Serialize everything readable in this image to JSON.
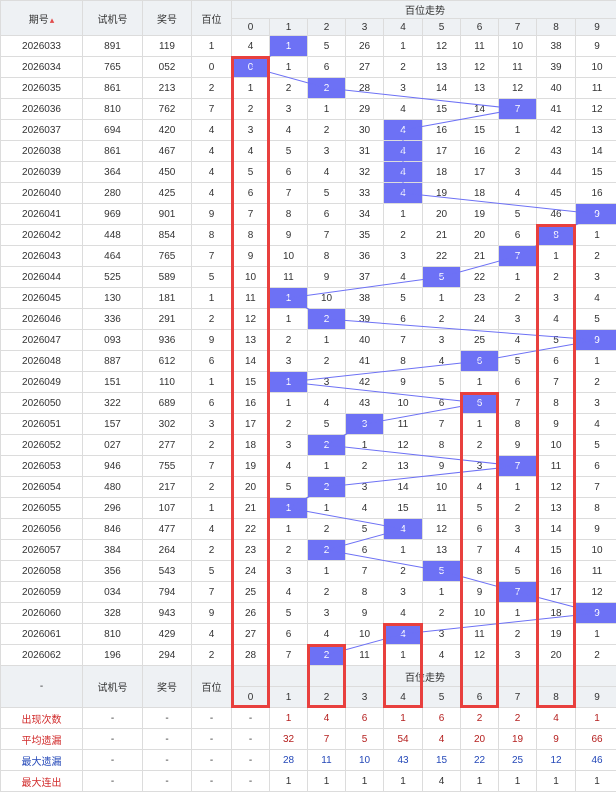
{
  "header": {
    "period_label": "期号",
    "test_label": "试机号",
    "prize_label": "奖号",
    "hundreds_label": "百位",
    "trend_label": "百位走势",
    "digits": [
      "0",
      "1",
      "2",
      "3",
      "4",
      "5",
      "6",
      "7",
      "8",
      "9"
    ],
    "footer_dash": "-"
  },
  "chart_data": {
    "type": "table",
    "rows": [
      {
        "period": "2026033",
        "test": "891",
        "prize": "119",
        "hundreds": "1",
        "cells": [
          "4",
          "1",
          "5",
          "26",
          "1",
          "12",
          "11",
          "10",
          "38",
          "9"
        ]
      },
      {
        "period": "2026034",
        "test": "765",
        "prize": "052",
        "hundreds": "0",
        "cells": [
          "0",
          "1",
          "6",
          "27",
          "2",
          "13",
          "12",
          "11",
          "39",
          "10"
        ]
      },
      {
        "period": "2026035",
        "test": "861",
        "prize": "213",
        "hundreds": "2",
        "cells": [
          "1",
          "2",
          "2",
          "28",
          "3",
          "14",
          "13",
          "12",
          "40",
          "11"
        ]
      },
      {
        "period": "2026036",
        "test": "810",
        "prize": "762",
        "hundreds": "7",
        "cells": [
          "2",
          "3",
          "1",
          "29",
          "4",
          "15",
          "14",
          "7",
          "41",
          "12"
        ]
      },
      {
        "period": "2026037",
        "test": "694",
        "prize": "420",
        "hundreds": "4",
        "cells": [
          "3",
          "4",
          "2",
          "30",
          "4",
          "16",
          "15",
          "1",
          "42",
          "13"
        ]
      },
      {
        "period": "2026038",
        "test": "861",
        "prize": "467",
        "hundreds": "4",
        "cells": [
          "4",
          "5",
          "3",
          "31",
          "4",
          "17",
          "16",
          "2",
          "43",
          "14"
        ]
      },
      {
        "period": "2026039",
        "test": "364",
        "prize": "450",
        "hundreds": "4",
        "cells": [
          "5",
          "6",
          "4",
          "32",
          "4",
          "18",
          "17",
          "3",
          "44",
          "15"
        ]
      },
      {
        "period": "2026040",
        "test": "280",
        "prize": "425",
        "hundreds": "4",
        "cells": [
          "6",
          "7",
          "5",
          "33",
          "4",
          "19",
          "18",
          "4",
          "45",
          "16"
        ]
      },
      {
        "period": "2026041",
        "test": "969",
        "prize": "901",
        "hundreds": "9",
        "cells": [
          "7",
          "8",
          "6",
          "34",
          "1",
          "20",
          "19",
          "5",
          "46",
          "9"
        ]
      },
      {
        "period": "2026042",
        "test": "448",
        "prize": "854",
        "hundreds": "8",
        "cells": [
          "8",
          "9",
          "7",
          "35",
          "2",
          "21",
          "20",
          "6",
          "8",
          "1"
        ]
      },
      {
        "period": "2026043",
        "test": "464",
        "prize": "765",
        "hundreds": "7",
        "cells": [
          "9",
          "10",
          "8",
          "36",
          "3",
          "22",
          "21",
          "7",
          "1",
          "2"
        ]
      },
      {
        "period": "2026044",
        "test": "525",
        "prize": "589",
        "hundreds": "5",
        "cells": [
          "10",
          "11",
          "9",
          "37",
          "4",
          "5",
          "22",
          "1",
          "2",
          "3"
        ]
      },
      {
        "period": "2026045",
        "test": "130",
        "prize": "181",
        "hundreds": "1",
        "cells": [
          "11",
          "1",
          "10",
          "38",
          "5",
          "1",
          "23",
          "2",
          "3",
          "4"
        ]
      },
      {
        "period": "2026046",
        "test": "336",
        "prize": "291",
        "hundreds": "2",
        "cells": [
          "12",
          "1",
          "2",
          "39",
          "6",
          "2",
          "24",
          "3",
          "4",
          "5"
        ]
      },
      {
        "period": "2026047",
        "test": "093",
        "prize": "936",
        "hundreds": "9",
        "cells": [
          "13",
          "2",
          "1",
          "40",
          "7",
          "3",
          "25",
          "4",
          "5",
          "9"
        ]
      },
      {
        "period": "2026048",
        "test": "887",
        "prize": "612",
        "hundreds": "6",
        "cells": [
          "14",
          "3",
          "2",
          "41",
          "8",
          "4",
          "6",
          "5",
          "6",
          "1"
        ]
      },
      {
        "period": "2026049",
        "test": "151",
        "prize": "110",
        "hundreds": "1",
        "cells": [
          "15",
          "1",
          "3",
          "42",
          "9",
          "5",
          "1",
          "6",
          "7",
          "2"
        ]
      },
      {
        "period": "2026050",
        "test": "322",
        "prize": "689",
        "hundreds": "6",
        "cells": [
          "16",
          "1",
          "4",
          "43",
          "10",
          "6",
          "6",
          "7",
          "8",
          "3"
        ]
      },
      {
        "period": "2026051",
        "test": "157",
        "prize": "302",
        "hundreds": "3",
        "cells": [
          "17",
          "2",
          "5",
          "3",
          "11",
          "7",
          "1",
          "8",
          "9",
          "4"
        ]
      },
      {
        "period": "2026052",
        "test": "027",
        "prize": "277",
        "hundreds": "2",
        "cells": [
          "18",
          "3",
          "2",
          "1",
          "12",
          "8",
          "2",
          "9",
          "10",
          "5"
        ]
      },
      {
        "period": "2026053",
        "test": "946",
        "prize": "755",
        "hundreds": "7",
        "cells": [
          "19",
          "4",
          "1",
          "2",
          "13",
          "9",
          "3",
          "7",
          "11",
          "6"
        ]
      },
      {
        "period": "2026054",
        "test": "480",
        "prize": "217",
        "hundreds": "2",
        "cells": [
          "20",
          "5",
          "2",
          "3",
          "14",
          "10",
          "4",
          "1",
          "12",
          "7"
        ]
      },
      {
        "period": "2026055",
        "test": "296",
        "prize": "107",
        "hundreds": "1",
        "cells": [
          "21",
          "1",
          "1",
          "4",
          "15",
          "11",
          "5",
          "2",
          "13",
          "8"
        ]
      },
      {
        "period": "2026056",
        "test": "846",
        "prize": "477",
        "hundreds": "4",
        "cells": [
          "22",
          "1",
          "2",
          "5",
          "4",
          "12",
          "6",
          "3",
          "14",
          "9"
        ]
      },
      {
        "period": "2026057",
        "test": "384",
        "prize": "264",
        "hundreds": "2",
        "cells": [
          "23",
          "2",
          "2",
          "6",
          "1",
          "13",
          "7",
          "4",
          "15",
          "10"
        ]
      },
      {
        "period": "2026058",
        "test": "356",
        "prize": "543",
        "hundreds": "5",
        "cells": [
          "24",
          "3",
          "1",
          "7",
          "2",
          "5",
          "8",
          "5",
          "16",
          "11"
        ]
      },
      {
        "period": "2026059",
        "test": "034",
        "prize": "794",
        "hundreds": "7",
        "cells": [
          "25",
          "4",
          "2",
          "8",
          "3",
          "1",
          "9",
          "7",
          "17",
          "12"
        ]
      },
      {
        "period": "2026060",
        "test": "328",
        "prize": "943",
        "hundreds": "9",
        "cells": [
          "26",
          "5",
          "3",
          "9",
          "4",
          "2",
          "10",
          "1",
          "18",
          "9"
        ]
      },
      {
        "period": "2026061",
        "test": "810",
        "prize": "429",
        "hounds": "4",
        "hundreds": "4",
        "cells": [
          "27",
          "6",
          "4",
          "10",
          "4",
          "3",
          "11",
          "2",
          "19",
          "1"
        ]
      },
      {
        "period": "2026062",
        "test": "196",
        "prize": "294",
        "hundreds": "2",
        "cells": [
          "28",
          "7",
          "2",
          "11",
          "1",
          "4",
          "12",
          "3",
          "20",
          "2"
        ]
      }
    ],
    "stats": [
      {
        "label": "出现次数",
        "color": "red",
        "values": [
          "1",
          "4",
          "6",
          "1",
          "6",
          "2",
          "2",
          "4",
          "1",
          "3"
        ]
      },
      {
        "label": "平均遗漏",
        "color": "red",
        "values": [
          "32",
          "7",
          "5",
          "54",
          "4",
          "20",
          "19",
          "9",
          "66",
          "12"
        ]
      },
      {
        "label": "最大遗漏",
        "color": "blue",
        "values": [
          "28",
          "11",
          "10",
          "43",
          "15",
          "22",
          "25",
          "12",
          "46",
          "16"
        ]
      },
      {
        "label": "最大连出",
        "color": "black",
        "values": [
          "1",
          "1",
          "1",
          "1",
          "4",
          "1",
          "1",
          "1",
          "1",
          "1"
        ]
      }
    ],
    "highlight_columns": [
      "0",
      "2",
      "4",
      "6",
      "8"
    ],
    "colors": {
      "hit": "#6d71f5",
      "line": "#6d71f5",
      "box": "#e8403e",
      "separator": "#a9a9a9",
      "header_bg": "#eef1f4"
    }
  }
}
